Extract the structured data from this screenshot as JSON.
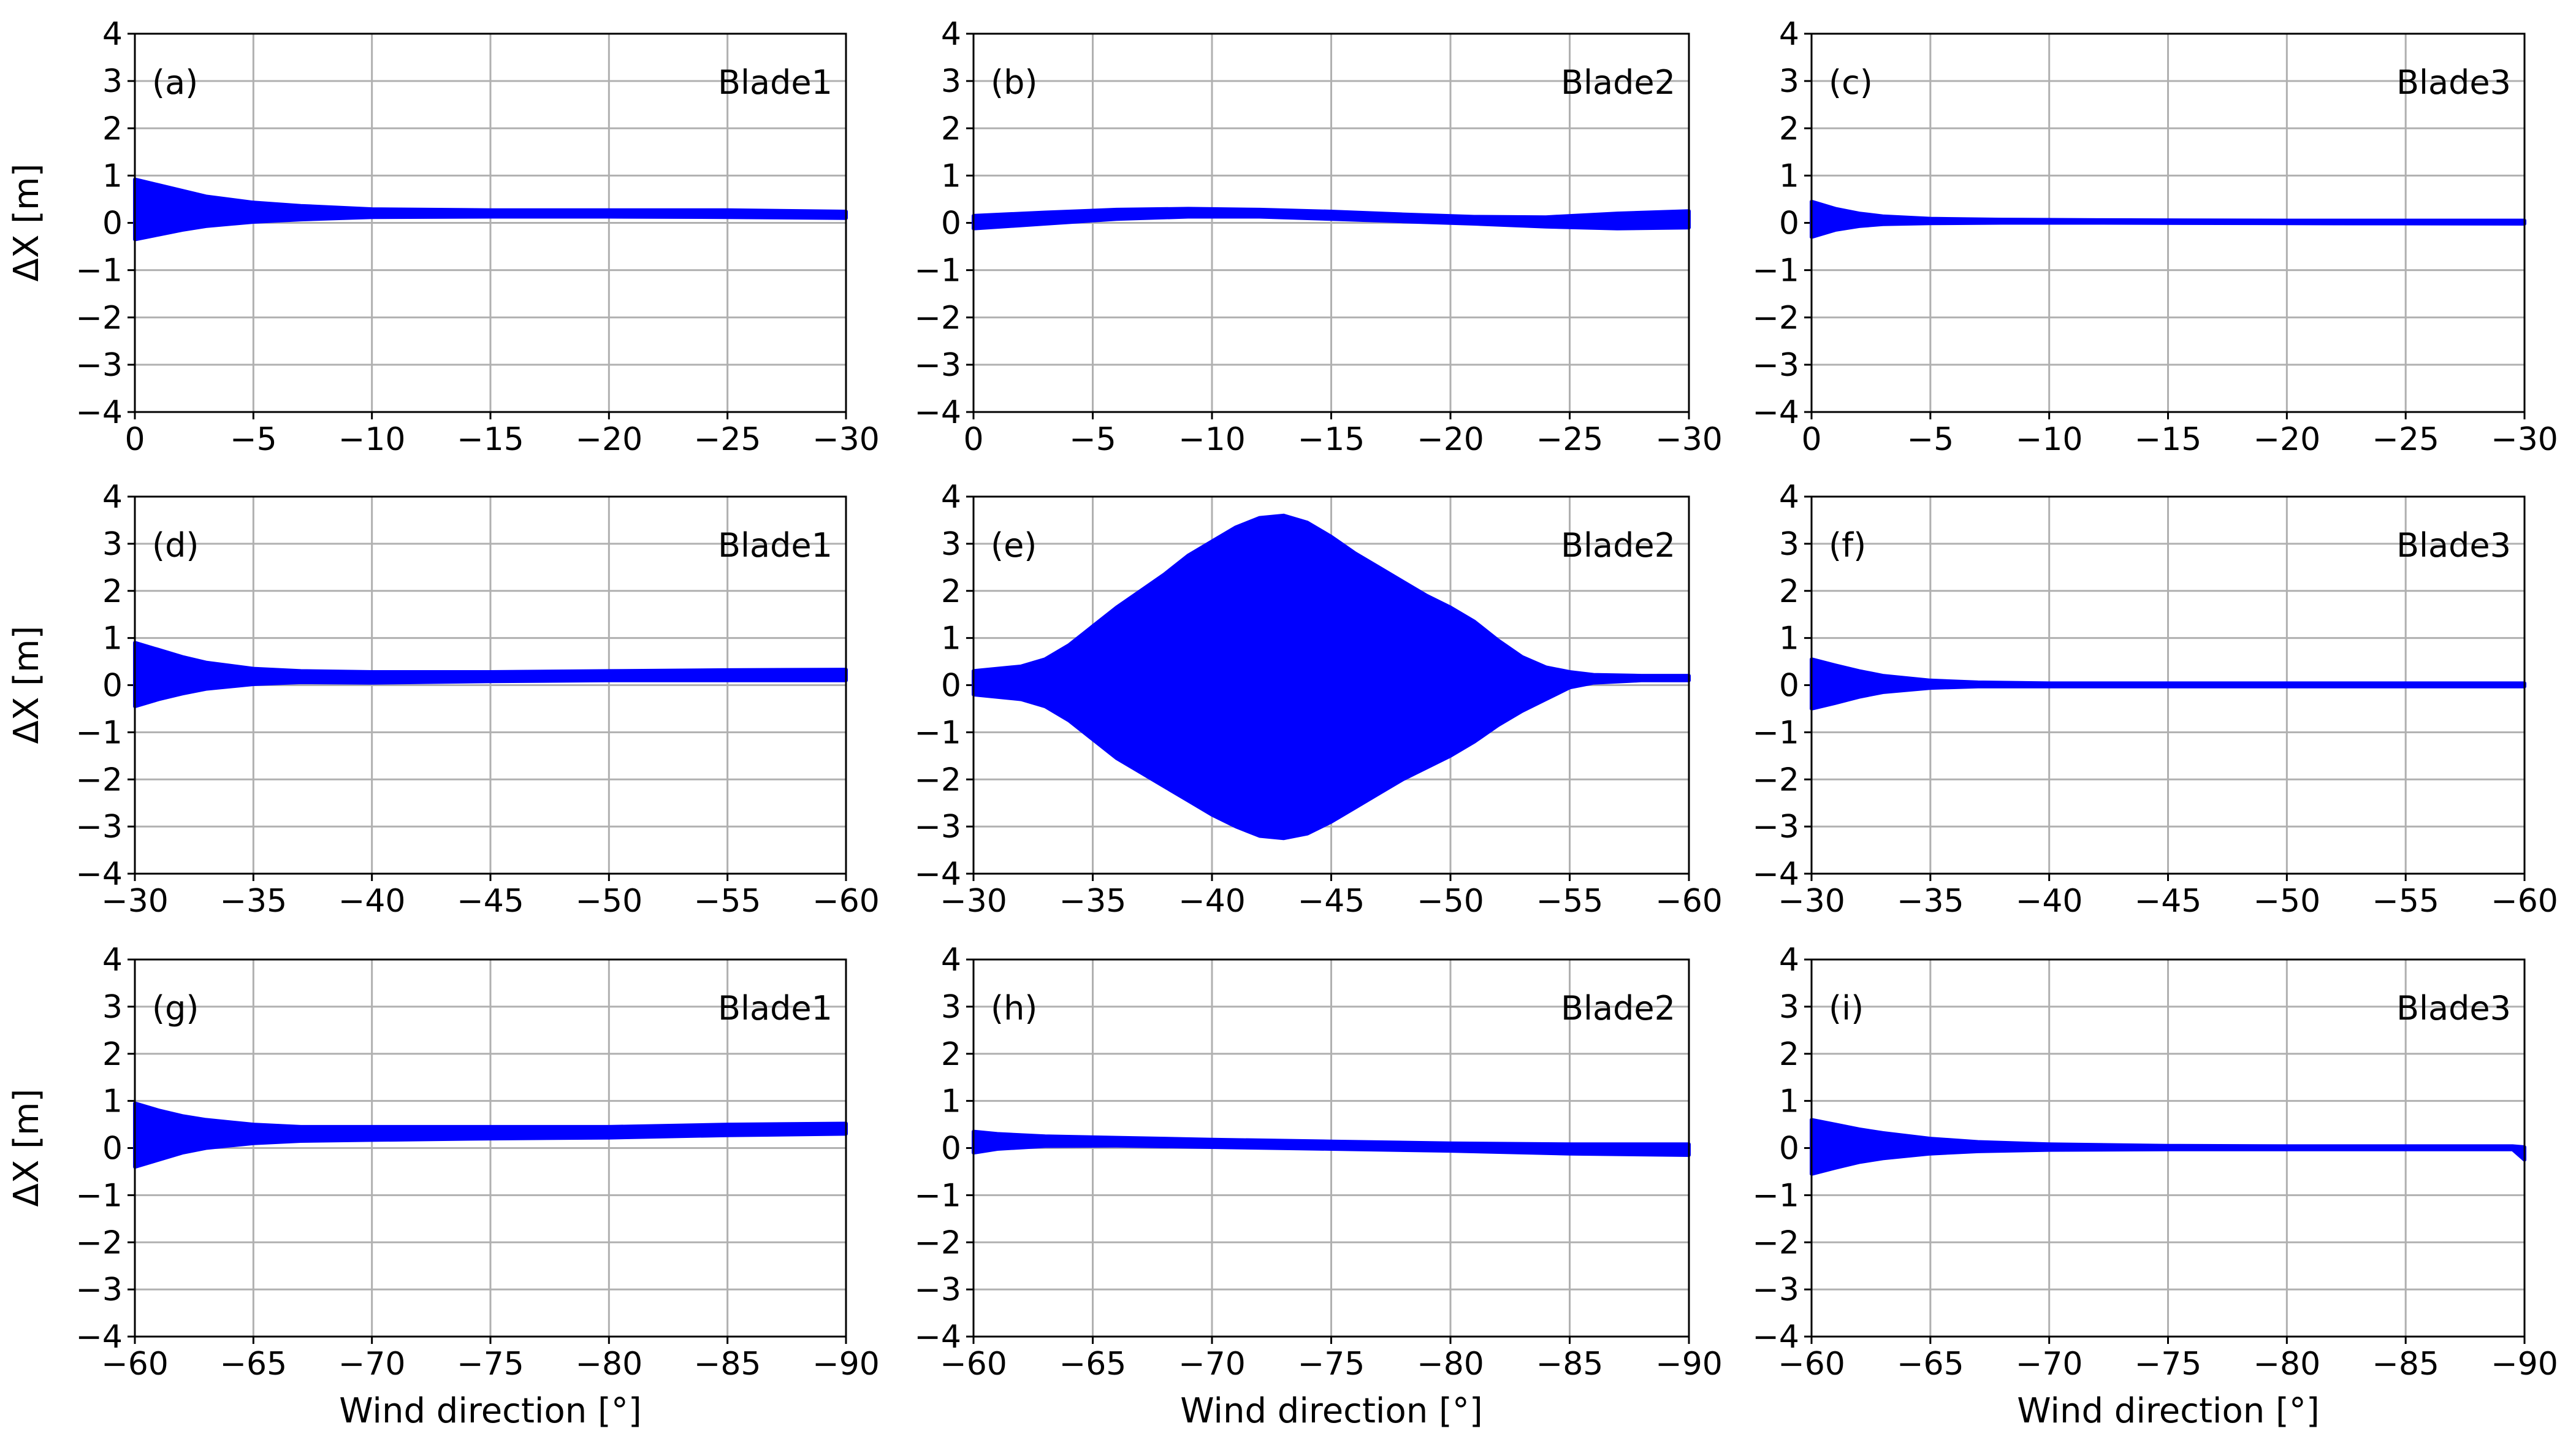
{
  "figure": {
    "xlabel": "Wind direction [°]",
    "ylabel": "ΔX [m]",
    "colors": {
      "envelope": "#0000ff",
      "grid": "#b0b0b0",
      "axes": "#000000"
    }
  },
  "chart_data": [
    {
      "type": "area",
      "panel": "(a)",
      "series_label": "Blade1",
      "xlim": [
        0,
        -30
      ],
      "ylim": [
        -4,
        4
      ],
      "xticks": [
        "0",
        "−5",
        "−10",
        "−15",
        "−20",
        "−25",
        "−30"
      ],
      "yticks": [
        "−4",
        "−3",
        "−2",
        "−1",
        "0",
        "1",
        "2",
        "3",
        "4"
      ],
      "grid": true,
      "envelope": {
        "x": [
          0,
          -1,
          -2,
          -3,
          -5,
          -7,
          -10,
          -15,
          -20,
          -25,
          -30
        ],
        "upper": [
          0.92,
          0.8,
          0.68,
          0.56,
          0.43,
          0.36,
          0.29,
          0.27,
          0.27,
          0.27,
          0.24
        ],
        "lower": [
          -0.35,
          -0.25,
          -0.15,
          -0.07,
          0.02,
          0.07,
          0.12,
          0.13,
          0.13,
          0.12,
          0.1
        ]
      }
    },
    {
      "type": "area",
      "panel": "(b)",
      "series_label": "Blade2",
      "xlim": [
        0,
        -30
      ],
      "ylim": [
        -4,
        4
      ],
      "xticks": [
        "0",
        "−5",
        "−10",
        "−15",
        "−20",
        "−25",
        "−30"
      ],
      "yticks": [
        "−4",
        "−3",
        "−2",
        "−1",
        "0",
        "1",
        "2",
        "3",
        "4"
      ],
      "grid": true,
      "envelope": {
        "x": [
          0,
          -3,
          -6,
          -9,
          -12,
          -15,
          -18,
          -21,
          -24,
          -27,
          -30
        ],
        "upper": [
          0.15,
          0.22,
          0.28,
          0.3,
          0.28,
          0.24,
          0.18,
          0.13,
          0.12,
          0.2,
          0.25
        ],
        "lower": [
          -0.12,
          -0.02,
          0.08,
          0.13,
          0.13,
          0.08,
          0.03,
          -0.02,
          -0.08,
          -0.12,
          -0.1
        ]
      }
    },
    {
      "type": "area",
      "panel": "(c)",
      "series_label": "Blade3",
      "xlim": [
        0,
        -30
      ],
      "ylim": [
        -4,
        4
      ],
      "xticks": [
        "0",
        "−5",
        "−10",
        "−15",
        "−20",
        "−25",
        "−30"
      ],
      "yticks": [
        "−4",
        "−3",
        "−2",
        "−1",
        "0",
        "1",
        "2",
        "3",
        "4"
      ],
      "grid": true,
      "envelope": {
        "x": [
          0,
          -1,
          -2,
          -3,
          -5,
          -8,
          -12,
          -20,
          -30
        ],
        "upper": [
          0.45,
          0.3,
          0.2,
          0.14,
          0.09,
          0.07,
          0.06,
          0.05,
          0.05
        ],
        "lower": [
          -0.3,
          -0.15,
          -0.07,
          -0.03,
          -0.01,
          0.0,
          0.0,
          -0.01,
          -0.02
        ]
      }
    },
    {
      "type": "area",
      "panel": "(d)",
      "series_label": "Blade1",
      "xlim": [
        -30,
        -60
      ],
      "ylim": [
        -4,
        4
      ],
      "xticks": [
        "−30",
        "−35",
        "−40",
        "−45",
        "−50",
        "−55",
        "−60"
      ],
      "yticks": [
        "−4",
        "−3",
        "−2",
        "−1",
        "0",
        "1",
        "2",
        "3",
        "4"
      ],
      "grid": true,
      "envelope": {
        "x": [
          -30,
          -31,
          -32,
          -33,
          -35,
          -37,
          -40,
          -45,
          -50,
          -55,
          -60
        ],
        "upper": [
          0.9,
          0.75,
          0.6,
          0.48,
          0.35,
          0.3,
          0.28,
          0.28,
          0.3,
          0.32,
          0.33
        ],
        "lower": [
          -0.45,
          -0.3,
          -0.18,
          -0.08,
          0.02,
          0.06,
          0.05,
          0.08,
          0.1,
          0.1,
          0.1
        ]
      }
    },
    {
      "type": "area",
      "panel": "(e)",
      "series_label": "Blade2",
      "xlim": [
        -30,
        -60
      ],
      "ylim": [
        -4,
        4
      ],
      "xticks": [
        "−30",
        "−35",
        "−40",
        "−45",
        "−50",
        "−55",
        "−60"
      ],
      "yticks": [
        "−4",
        "−3",
        "−2",
        "−1",
        "0",
        "1",
        "2",
        "3",
        "4"
      ],
      "grid": true,
      "envelope": {
        "x": [
          -30,
          -32,
          -33,
          -34,
          -35,
          -36,
          -37,
          -38,
          -39,
          -40,
          -41,
          -42,
          -43,
          -44,
          -45,
          -46,
          -47,
          -48,
          -49,
          -50,
          -51,
          -52,
          -53,
          -54,
          -55,
          -56,
          -58,
          -60
        ],
        "upper": [
          0.3,
          0.4,
          0.55,
          0.85,
          1.25,
          1.65,
          2.0,
          2.35,
          2.75,
          3.05,
          3.35,
          3.55,
          3.6,
          3.45,
          3.15,
          2.8,
          2.5,
          2.2,
          1.9,
          1.65,
          1.35,
          0.95,
          0.6,
          0.38,
          0.28,
          0.22,
          0.2,
          0.2
        ],
        "lower": [
          -0.2,
          -0.3,
          -0.45,
          -0.75,
          -1.15,
          -1.55,
          -1.85,
          -2.15,
          -2.45,
          -2.75,
          -3.0,
          -3.2,
          -3.25,
          -3.15,
          -2.9,
          -2.6,
          -2.3,
          -2.0,
          -1.75,
          -1.5,
          -1.2,
          -0.85,
          -0.55,
          -0.3,
          -0.05,
          0.05,
          0.1,
          0.1
        ]
      }
    },
    {
      "type": "area",
      "panel": "(f)",
      "series_label": "Blade3",
      "xlim": [
        -30,
        -60
      ],
      "ylim": [
        -4,
        4
      ],
      "xticks": [
        "−30",
        "−35",
        "−40",
        "−45",
        "−50",
        "−55",
        "−60"
      ],
      "yticks": [
        "−4",
        "−3",
        "−2",
        "−1",
        "0",
        "1",
        "2",
        "3",
        "4"
      ],
      "grid": true,
      "envelope": {
        "x": [
          -30,
          -31,
          -32,
          -33,
          -35,
          -37,
          -40,
          -45,
          -50,
          -60
        ],
        "upper": [
          0.55,
          0.42,
          0.3,
          0.2,
          0.1,
          0.06,
          0.04,
          0.04,
          0.04,
          0.04
        ],
        "lower": [
          -0.5,
          -0.38,
          -0.25,
          -0.15,
          -0.06,
          -0.03,
          -0.03,
          -0.03,
          -0.03,
          -0.03
        ]
      }
    },
    {
      "type": "area",
      "panel": "(g)",
      "series_label": "Blade1",
      "xlim": [
        -60,
        -90
      ],
      "ylim": [
        -4,
        4
      ],
      "xticks": [
        "−60",
        "−65",
        "−70",
        "−75",
        "−80",
        "−85",
        "−90"
      ],
      "yticks": [
        "−4",
        "−3",
        "−2",
        "−1",
        "0",
        "1",
        "2",
        "3",
        "4"
      ],
      "grid": true,
      "envelope": {
        "x": [
          -60,
          -61,
          -62,
          -63,
          -65,
          -67,
          -70,
          -75,
          -80,
          -85,
          -90
        ],
        "upper": [
          0.95,
          0.8,
          0.68,
          0.6,
          0.5,
          0.45,
          0.45,
          0.45,
          0.45,
          0.5,
          0.52
        ],
        "lower": [
          -0.4,
          -0.25,
          -0.1,
          0.0,
          0.1,
          0.15,
          0.17,
          0.2,
          0.22,
          0.27,
          0.3
        ]
      }
    },
    {
      "type": "area",
      "panel": "(h)",
      "series_label": "Blade2",
      "xlim": [
        -60,
        -90
      ],
      "ylim": [
        -4,
        4
      ],
      "xticks": [
        "−60",
        "−65",
        "−70",
        "−75",
        "−80",
        "−85",
        "−90"
      ],
      "yticks": [
        "−4",
        "−3",
        "−2",
        "−1",
        "0",
        "1",
        "2",
        "3",
        "4"
      ],
      "grid": true,
      "envelope": {
        "x": [
          -60,
          -61,
          -63,
          -66,
          -70,
          -75,
          -80,
          -85,
          -90
        ],
        "upper": [
          0.35,
          0.3,
          0.25,
          0.22,
          0.18,
          0.14,
          0.1,
          0.08,
          0.08
        ],
        "lower": [
          -0.1,
          -0.02,
          0.04,
          0.05,
          0.02,
          -0.02,
          -0.06,
          -0.12,
          -0.15
        ]
      }
    },
    {
      "type": "area",
      "panel": "(i)",
      "series_label": "Blade3",
      "xlim": [
        -60,
        -90
      ],
      "ylim": [
        -4,
        4
      ],
      "xticks": [
        "−60",
        "−65",
        "−70",
        "−75",
        "−80",
        "−85",
        "−90"
      ],
      "yticks": [
        "−4",
        "−3",
        "−2",
        "−1",
        "0",
        "1",
        "2",
        "3",
        "4"
      ],
      "grid": true,
      "envelope": {
        "x": [
          -60,
          -61,
          -62,
          -63,
          -65,
          -67,
          -70,
          -75,
          -80,
          -89.5,
          -90
        ],
        "upper": [
          0.6,
          0.5,
          0.4,
          0.32,
          0.2,
          0.13,
          0.08,
          0.05,
          0.04,
          0.04,
          0.02
        ],
        "lower": [
          -0.55,
          -0.42,
          -0.3,
          -0.22,
          -0.12,
          -0.07,
          -0.04,
          -0.03,
          -0.03,
          -0.03,
          -0.25
        ]
      }
    }
  ]
}
